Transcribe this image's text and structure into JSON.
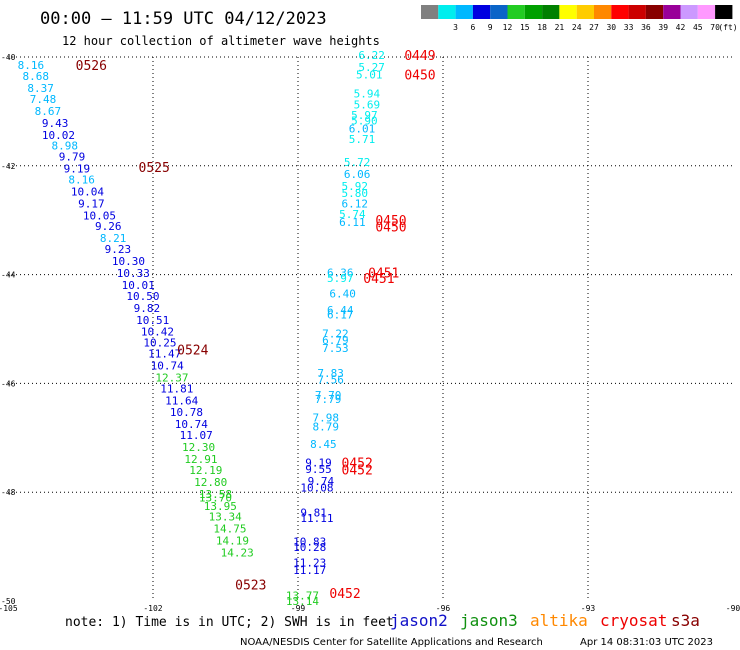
{
  "title": "00:00 — 11:59 UTC 04/12/2023",
  "subtitle": "12 hour collection of altimeter wave heights",
  "legend": {
    "unit": "(ft)",
    "bins": [
      {
        "label": "",
        "color": "#808080"
      },
      {
        "label": "3",
        "color": "#00eeee"
      },
      {
        "label": "6",
        "color": "#00b8ff"
      },
      {
        "label": "9",
        "color": "#0000e0"
      },
      {
        "label": "12",
        "color": "#0a64c8"
      },
      {
        "label": "15",
        "color": "#22cc22"
      },
      {
        "label": "18",
        "color": "#00a000"
      },
      {
        "label": "21",
        "color": "#008000"
      },
      {
        "label": "24",
        "color": "#ffff00"
      },
      {
        "label": "27",
        "color": "#ffcc00"
      },
      {
        "label": "30",
        "color": "#ff8800"
      },
      {
        "label": "33",
        "color": "#ff0000"
      },
      {
        "label": "36",
        "color": "#cc0000"
      },
      {
        "label": "39",
        "color": "#880000"
      },
      {
        "label": "42",
        "color": "#990099"
      },
      {
        "label": "45",
        "color": "#cc99ff"
      },
      {
        "label": "70",
        "color": "#ff99ff"
      },
      {
        "label": "",
        "color": "#000000"
      }
    ]
  },
  "note": "note: 1) Time is in UTC; 2) SWH is in feet",
  "satellites": [
    {
      "name": "jason2",
      "color": "#1010c8"
    },
    {
      "name": "jason3",
      "color": "#109010"
    },
    {
      "name": "altika",
      "color": "#ff8800"
    },
    {
      "name": "cryosat",
      "color": "#ee0000"
    },
    {
      "name": "s3a",
      "color": "#880000"
    }
  ],
  "credit": "NOAA/NESDIS Center for Satellite Applications and Research",
  "timestamp": "Apr 14 08:31:03 UTC 2023",
  "chart_data": {
    "type": "scatter",
    "xlim": [
      -105,
      -90
    ],
    "ylim": [
      -50,
      -40
    ],
    "x_ticks": [
      -105,
      -102,
      -99,
      -96,
      -93,
      -90
    ],
    "y_ticks": [
      -40,
      -42,
      -44,
      -46,
      -48,
      -50
    ],
    "grid": true,
    "pass_labels": [
      {
        "text": "0526",
        "x": -103.6,
        "y": -40.15,
        "color": "#880000"
      },
      {
        "text": "0525",
        "x": -102.3,
        "y": -42.02,
        "color": "#880000"
      },
      {
        "text": "0524",
        "x": -101.5,
        "y": -45.38,
        "color": "#880000"
      },
      {
        "text": "0523",
        "x": -100.3,
        "y": -49.7,
        "color": "#880000"
      },
      {
        "text": "0449",
        "x": -96.8,
        "y": -39.96,
        "color": "#ee0000"
      },
      {
        "text": "0450",
        "x": -96.8,
        "y": -40.32,
        "color": "#ee0000"
      },
      {
        "text": "0450",
        "x": -97.4,
        "y": -43.0,
        "color": "#ee0000"
      },
      {
        "text": "0450",
        "x": -97.4,
        "y": -43.12,
        "color": "#ee0000"
      },
      {
        "text": "0451",
        "x": -97.55,
        "y": -43.96,
        "color": "#ee0000"
      },
      {
        "text": "0451",
        "x": -97.65,
        "y": -44.06,
        "color": "#ee0000"
      },
      {
        "text": "0452",
        "x": -98.1,
        "y": -47.45,
        "color": "#ee0000"
      },
      {
        "text": "0452",
        "x": -98.1,
        "y": -47.58,
        "color": "#ee0000"
      },
      {
        "text": "0452",
        "x": -98.35,
        "y": -49.85,
        "color": "#ee0000"
      }
    ],
    "observations": [
      {
        "text": "8.16",
        "x": -104.8,
        "y": -40.15,
        "color": "#00b8ff"
      },
      {
        "text": "8.68",
        "x": -104.7,
        "y": -40.35,
        "color": "#00b8ff"
      },
      {
        "text": "8.37",
        "x": -104.6,
        "y": -40.57,
        "color": "#00b8ff"
      },
      {
        "text": "7.48",
        "x": -104.55,
        "y": -40.77,
        "color": "#00b8ff"
      },
      {
        "text": "8.67",
        "x": -104.45,
        "y": -40.99,
        "color": "#00b8ff"
      },
      {
        "text": "9.43",
        "x": -104.3,
        "y": -41.21,
        "color": "#0000e0"
      },
      {
        "text": "10.02",
        "x": -104.3,
        "y": -41.43,
        "color": "#0000e0"
      },
      {
        "text": "8.98",
        "x": -104.1,
        "y": -41.63,
        "color": "#00b8ff"
      },
      {
        "text": "9.79",
        "x": -103.95,
        "y": -41.83,
        "color": "#0000e0"
      },
      {
        "text": "9.19",
        "x": -103.85,
        "y": -42.05,
        "color": "#0000e0"
      },
      {
        "text": "8.16",
        "x": -103.75,
        "y": -42.25,
        "color": "#00b8ff"
      },
      {
        "text": "10.04",
        "x": -103.7,
        "y": -42.47,
        "color": "#0000e0"
      },
      {
        "text": "9.17",
        "x": -103.55,
        "y": -42.69,
        "color": "#0000e0"
      },
      {
        "text": "10.05",
        "x": -103.45,
        "y": -42.91,
        "color": "#0000e0"
      },
      {
        "text": "9.26",
        "x": -103.2,
        "y": -43.11,
        "color": "#0000e0"
      },
      {
        "text": "8.21",
        "x": -103.1,
        "y": -43.33,
        "color": "#00b8ff"
      },
      {
        "text": "9.23",
        "x": -103.0,
        "y": -43.53,
        "color": "#0000e0"
      },
      {
        "text": "10.30",
        "x": -102.85,
        "y": -43.75,
        "color": "#0000e0"
      },
      {
        "text": "10.33",
        "x": -102.75,
        "y": -43.97,
        "color": "#0000e0"
      },
      {
        "text": "10.01",
        "x": -102.65,
        "y": -44.19,
        "color": "#0000e0"
      },
      {
        "text": "10.50",
        "x": -102.55,
        "y": -44.39,
        "color": "#0000e0"
      },
      {
        "text": "9.82",
        "x": -102.4,
        "y": -44.61,
        "color": "#0000e0"
      },
      {
        "text": "10.51",
        "x": -102.35,
        "y": -44.83,
        "color": "#0000e0"
      },
      {
        "text": "10.42",
        "x": -102.25,
        "y": -45.05,
        "color": "#0000e0"
      },
      {
        "text": "10.25",
        "x": -102.2,
        "y": -45.25,
        "color": "#0000e0"
      },
      {
        "text": "11.47",
        "x": -102.1,
        "y": -45.45,
        "color": "#0000e0"
      },
      {
        "text": "10.74",
        "x": -102.05,
        "y": -45.67,
        "color": "#0000e0"
      },
      {
        "text": "12.37",
        "x": -101.95,
        "y": -45.89,
        "color": "#22cc22"
      },
      {
        "text": "11.81",
        "x": -101.85,
        "y": -46.09,
        "color": "#0000e0"
      },
      {
        "text": "11.64",
        "x": -101.75,
        "y": -46.31,
        "color": "#0000e0"
      },
      {
        "text": "10.78",
        "x": -101.65,
        "y": -46.53,
        "color": "#0000e0"
      },
      {
        "text": "10.74",
        "x": -101.55,
        "y": -46.75,
        "color": "#0000e0"
      },
      {
        "text": "11.07",
        "x": -101.45,
        "y": -46.95,
        "color": "#0000e0"
      },
      {
        "text": "12.30",
        "x": -101.4,
        "y": -47.17,
        "color": "#22cc22"
      },
      {
        "text": "12.91",
        "x": -101.35,
        "y": -47.39,
        "color": "#22cc22"
      },
      {
        "text": "12.19",
        "x": -101.25,
        "y": -47.59,
        "color": "#22cc22"
      },
      {
        "text": "12.80",
        "x": -101.15,
        "y": -47.81,
        "color": "#22cc22"
      },
      {
        "text": "13.58",
        "x": -101.05,
        "y": -48.03,
        "color": "#22cc22"
      },
      {
        "text": "13.70",
        "x": -101.05,
        "y": -48.1,
        "color": "#22cc22"
      },
      {
        "text": "13.95",
        "x": -100.95,
        "y": -48.25,
        "color": "#22cc22"
      },
      {
        "text": "13.34",
        "x": -100.85,
        "y": -48.45,
        "color": "#22cc22"
      },
      {
        "text": "14.75",
        "x": -100.75,
        "y": -48.67,
        "color": "#22cc22"
      },
      {
        "text": "14.19",
        "x": -100.7,
        "y": -48.89,
        "color": "#22cc22"
      },
      {
        "text": "14.23",
        "x": -100.6,
        "y": -49.11,
        "color": "#22cc22"
      },
      {
        "text": "6.22",
        "x": -97.75,
        "y": -39.96,
        "color": "#00eeee"
      },
      {
        "text": "5.27",
        "x": -97.75,
        "y": -40.18,
        "color": "#00eeee"
      },
      {
        "text": "5.01",
        "x": -97.8,
        "y": -40.32,
        "color": "#00eeee"
      },
      {
        "text": "5.94",
        "x": -97.85,
        "y": -40.67,
        "color": "#00eeee"
      },
      {
        "text": "5.69",
        "x": -97.85,
        "y": -40.87,
        "color": "#00eeee"
      },
      {
        "text": "5.97",
        "x": -97.9,
        "y": -41.07,
        "color": "#00eeee"
      },
      {
        "text": "5.90",
        "x": -97.9,
        "y": -41.17,
        "color": "#00eeee"
      },
      {
        "text": "6.01",
        "x": -97.95,
        "y": -41.31,
        "color": "#00b8ff"
      },
      {
        "text": "5.71",
        "x": -97.95,
        "y": -41.51,
        "color": "#00eeee"
      },
      {
        "text": "5.72",
        "x": -98.05,
        "y": -41.93,
        "color": "#00eeee"
      },
      {
        "text": "6.06",
        "x": -98.05,
        "y": -42.15,
        "color": "#00b8ff"
      },
      {
        "text": "5.92",
        "x": -98.1,
        "y": -42.37,
        "color": "#00eeee"
      },
      {
        "text": "5.80",
        "x": -98.1,
        "y": -42.5,
        "color": "#00eeee"
      },
      {
        "text": "6.12",
        "x": -98.1,
        "y": -42.69,
        "color": "#00b8ff"
      },
      {
        "text": "5.74",
        "x": -98.15,
        "y": -42.89,
        "color": "#00eeee"
      },
      {
        "text": "6.11",
        "x": -98.15,
        "y": -43.03,
        "color": "#00b8ff"
      },
      {
        "text": "6.36",
        "x": -98.4,
        "y": -43.96,
        "color": "#00b8ff"
      },
      {
        "text": "5.97",
        "x": -98.4,
        "y": -44.06,
        "color": "#00eeee"
      },
      {
        "text": "6.40",
        "x": -98.35,
        "y": -44.35,
        "color": "#00b8ff"
      },
      {
        "text": "6.44",
        "x": -98.4,
        "y": -44.65,
        "color": "#00b8ff"
      },
      {
        "text": "6.17",
        "x": -98.4,
        "y": -44.73,
        "color": "#00b8ff"
      },
      {
        "text": "7.22",
        "x": -98.5,
        "y": -45.08,
        "color": "#00b8ff"
      },
      {
        "text": "6.79",
        "x": -98.5,
        "y": -45.2,
        "color": "#00b8ff"
      },
      {
        "text": "7.53",
        "x": -98.5,
        "y": -45.35,
        "color": "#00b8ff"
      },
      {
        "text": "7.83",
        "x": -98.6,
        "y": -45.81,
        "color": "#00b8ff"
      },
      {
        "text": "7.56",
        "x": -98.6,
        "y": -45.93,
        "color": "#00b8ff"
      },
      {
        "text": "7.70",
        "x": -98.65,
        "y": -46.21,
        "color": "#00b8ff"
      },
      {
        "text": "7.79",
        "x": -98.65,
        "y": -46.29,
        "color": "#00b8ff"
      },
      {
        "text": "7.98",
        "x": -98.7,
        "y": -46.63,
        "color": "#00b8ff"
      },
      {
        "text": "8.79",
        "x": -98.7,
        "y": -46.79,
        "color": "#00b8ff"
      },
      {
        "text": "8.45",
        "x": -98.75,
        "y": -47.11,
        "color": "#00b8ff"
      },
      {
        "text": "9.19",
        "x": -98.85,
        "y": -47.45,
        "color": "#0000e0"
      },
      {
        "text": "9.55",
        "x": -98.85,
        "y": -47.57,
        "color": "#0000e0"
      },
      {
        "text": "9.74",
        "x": -98.8,
        "y": -47.79,
        "color": "#0000e0"
      },
      {
        "text": "10.08",
        "x": -98.95,
        "y": -47.91,
        "color": "#0000e0"
      },
      {
        "text": "9.81",
        "x": -98.95,
        "y": -48.37,
        "color": "#0000e0"
      },
      {
        "text": "11.11",
        "x": -98.95,
        "y": -48.47,
        "color": "#0000e0"
      },
      {
        "text": "10.83",
        "x": -99.1,
        "y": -48.91,
        "color": "#0000e0"
      },
      {
        "text": "10.28",
        "x": -99.1,
        "y": -49.01,
        "color": "#0000e0"
      },
      {
        "text": "11.23",
        "x": -99.1,
        "y": -49.29,
        "color": "#0000e0"
      },
      {
        "text": "11.17",
        "x": -99.1,
        "y": -49.43,
        "color": "#0000e0"
      },
      {
        "text": "13.77",
        "x": -99.25,
        "y": -49.9,
        "color": "#22cc22"
      },
      {
        "text": "13.14",
        "x": -99.25,
        "y": -50.0,
        "color": "#22cc22"
      }
    ]
  }
}
